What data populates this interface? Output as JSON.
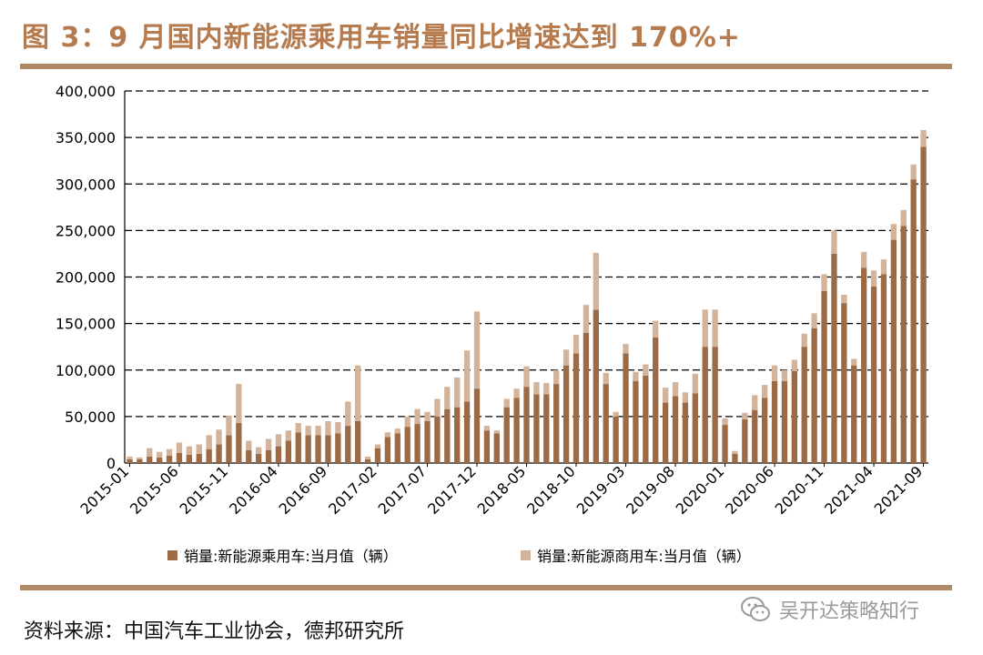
{
  "title": "图 3：9 月国内新能源乘用车销量同比增速达到 170%+",
  "source": "资料来源：中国汽车工业协会，德邦研究所",
  "watermark": "吴开达策略知行",
  "watermark_icon": "wechat-icon",
  "colors": {
    "passenger": "#9c6b45",
    "commercial": "#d3b49a",
    "accent": "#b57a4d",
    "rule": "#b08a67"
  },
  "chart_data": {
    "type": "bar",
    "stacked": true,
    "x_start": "2015-01",
    "x": [
      "2015-01",
      "2015-02",
      "2015-03",
      "2015-04",
      "2015-05",
      "2015-06",
      "2015-07",
      "2015-08",
      "2015-09",
      "2015-10",
      "2015-11",
      "2015-12",
      "2016-01",
      "2016-02",
      "2016-03",
      "2016-04",
      "2016-05",
      "2016-06",
      "2016-07",
      "2016-08",
      "2016-09",
      "2016-10",
      "2016-11",
      "2016-12",
      "2017-01",
      "2017-02",
      "2017-03",
      "2017-04",
      "2017-05",
      "2017-06",
      "2017-07",
      "2017-08",
      "2017-09",
      "2017-10",
      "2017-11",
      "2017-12",
      "2018-01",
      "2018-02",
      "2018-03",
      "2018-04",
      "2018-05",
      "2018-06",
      "2018-07",
      "2018-08",
      "2018-09",
      "2018-10",
      "2018-11",
      "2018-12",
      "2019-01",
      "2019-02",
      "2019-03",
      "2019-04",
      "2019-05",
      "2019-06",
      "2019-07",
      "2019-08",
      "2019-09",
      "2019-10",
      "2019-11",
      "2019-12",
      "2020-01",
      "2020-02",
      "2020-03",
      "2020-04",
      "2020-05",
      "2020-06",
      "2020-07",
      "2020-08",
      "2020-09",
      "2020-10",
      "2020-11",
      "2020-12",
      "2021-01",
      "2021-02",
      "2021-03",
      "2021-04",
      "2021-05",
      "2021-06",
      "2021-07",
      "2021-08",
      "2021-09"
    ],
    "xticks": [
      "2015-01",
      "2015-06",
      "2015-11",
      "2016-04",
      "2016-09",
      "2017-02",
      "2017-07",
      "2017-12",
      "2018-05",
      "2018-10",
      "2019-03",
      "2019-08",
      "2020-01",
      "2020-06",
      "2020-11",
      "2021-04",
      "2021-09"
    ],
    "series": [
      {
        "name": "销量:新能源乘用车:当月值（辆）",
        "values": [
          4000,
          4000,
          7000,
          6000,
          8000,
          11000,
          9000,
          10000,
          15000,
          20000,
          30000,
          43000,
          14000,
          10000,
          14000,
          18000,
          24000,
          33000,
          30000,
          30000,
          30000,
          32000,
          40000,
          45000,
          4000,
          16000,
          28000,
          32000,
          39000,
          42000,
          45000,
          50000,
          58000,
          60000,
          66000,
          80000,
          35000,
          32000,
          60000,
          70000,
          82000,
          74000,
          74000,
          85000,
          105000,
          118000,
          140000,
          165000,
          85000,
          50000,
          118000,
          88000,
          94000,
          135000,
          65000,
          72000,
          65000,
          75000,
          125000,
          125000,
          41000,
          10000,
          47000,
          57000,
          70000,
          88000,
          88000,
          99000,
          125000,
          145000,
          185000,
          225000,
          172000,
          105000,
          210000,
          190000,
          203000,
          240000,
          255000,
          305000,
          340000
        ]
      },
      {
        "name": "销量:新能源商用车:当月值（辆）",
        "values": [
          3000,
          2000,
          9000,
          6000,
          7000,
          11000,
          9000,
          10000,
          15000,
          16000,
          21000,
          42000,
          10000,
          7000,
          12000,
          13000,
          11000,
          10000,
          10000,
          10000,
          15000,
          12000,
          26000,
          60000,
          3000,
          4000,
          5000,
          5000,
          11000,
          16000,
          10000,
          19000,
          24000,
          32000,
          55000,
          83000,
          5000,
          3000,
          9000,
          10000,
          22000,
          13000,
          12000,
          15000,
          17000,
          20000,
          30000,
          61000,
          12000,
          5000,
          10000,
          10000,
          12000,
          18000,
          16000,
          15000,
          11000,
          21000,
          40000,
          40000,
          7000,
          3000,
          7000,
          16000,
          14000,
          17000,
          12000,
          12000,
          14000,
          16000,
          18000,
          25000,
          9000,
          7000,
          17000,
          17000,
          16000,
          17000,
          17000,
          16000,
          18000
        ]
      }
    ],
    "y_ticks": [
      "0",
      "50,000",
      "100,000",
      "150,000",
      "200,000",
      "250,000",
      "300,000",
      "350,000",
      "400,000"
    ],
    "ylim": [
      0,
      400000
    ],
    "grid": "horizontal dashed",
    "legend_position": "bottom"
  }
}
